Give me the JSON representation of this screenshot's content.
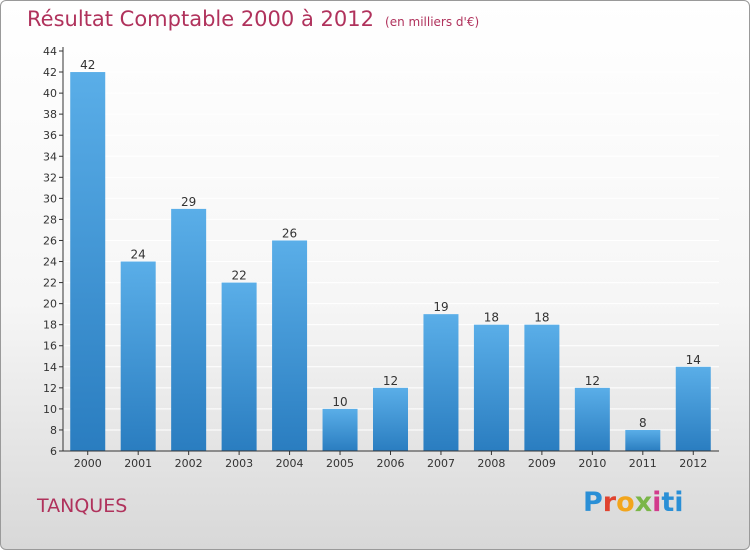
{
  "header": {
    "title": "Résultat Comptable 2000 à 2012",
    "unit": "(en milliers d'€)"
  },
  "commune": "TANQUES",
  "logo": {
    "text": "Proxiti"
  },
  "colors": {
    "title": "#b0325c",
    "bar_top": "#5aaee8",
    "bar_bottom": "#2a7dc0",
    "grid": "#ffffff",
    "axis": "#333333"
  },
  "chart_data": {
    "type": "bar",
    "title": "Résultat Comptable 2000 à 2012",
    "subtitle": "(en milliers d'€)",
    "xlabel": "",
    "ylabel": "",
    "categories": [
      "2000",
      "2001",
      "2002",
      "2003",
      "2004",
      "2005",
      "2006",
      "2007",
      "2008",
      "2009",
      "2010",
      "2011",
      "2012"
    ],
    "values": [
      42,
      24,
      29,
      22,
      26,
      10,
      12,
      19,
      18,
      18,
      12,
      8,
      14
    ],
    "ylim": [
      6,
      44
    ],
    "yticks": [
      6,
      8,
      10,
      12,
      14,
      16,
      18,
      20,
      22,
      24,
      26,
      28,
      30,
      32,
      34,
      36,
      38,
      40,
      42,
      44
    ],
    "grid": true,
    "legend": "none"
  }
}
